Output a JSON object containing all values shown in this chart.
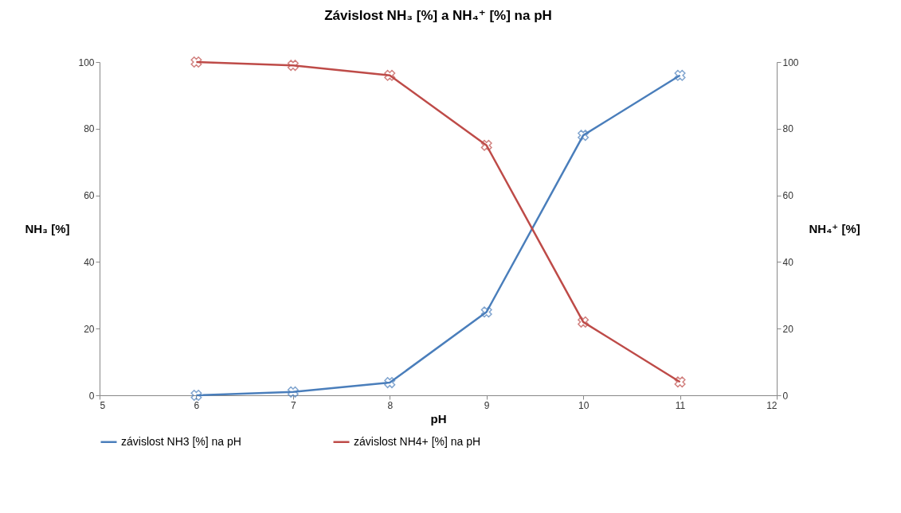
{
  "chart_data": {
    "type": "line",
    "title": "Závislost NH₃ [%] a NH₄⁺ [%] na pH",
    "xlabel": "pH",
    "ylabel": "NH₃ [%]",
    "y2label": "NH₄⁺ [%]",
    "x": [
      6,
      7,
      8,
      9,
      10,
      11
    ],
    "series": [
      {
        "name": "závislost NH3 [%] na pH",
        "color": "#4a7ebb",
        "values": [
          0,
          1,
          3.8,
          25,
          78,
          96
        ]
      },
      {
        "name": "závislost NH4+ [%] na pH",
        "color": "#be4b48",
        "axis": "y2",
        "values": [
          100,
          99,
          96,
          75,
          22,
          4
        ]
      }
    ],
    "xlim": [
      5,
      12
    ],
    "xticks": [
      5,
      6,
      7,
      8,
      9,
      10,
      11,
      12
    ],
    "ylim": [
      0,
      100
    ],
    "yticks": [
      0,
      20,
      40,
      60,
      80,
      100
    ],
    "y2lim": [
      0,
      100
    ],
    "y2ticks": [
      0,
      20,
      40,
      60,
      80,
      100
    ],
    "grid": false,
    "legend": "bottom",
    "marker": "cross",
    "line_style": "solid"
  }
}
